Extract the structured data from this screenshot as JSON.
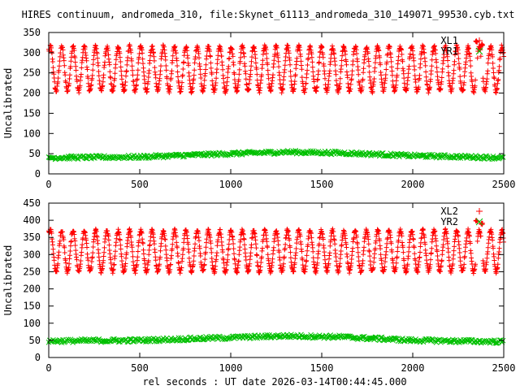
{
  "title": "HIRES continuum, andromeda_310, file:Skynet_61113_andromeda_310_149071_99530.cyb.txt",
  "xlabel": "rel seconds : UT date 2026-03-14T00:44:45.000",
  "colors": {
    "xl": "#ff0000",
    "yr": "#00c000",
    "frame": "#000000"
  },
  "chart_data": [
    {
      "type": "scatter",
      "ylabel": "Uncalibrated",
      "xlim": [
        0,
        2500
      ],
      "ylim": [
        0,
        350
      ],
      "xticks": [
        0,
        500,
        1000,
        1500,
        2000,
        2500
      ],
      "yticks": [
        0,
        50,
        100,
        150,
        200,
        250,
        300,
        350
      ],
      "legend_position": "top-right",
      "series": [
        {
          "name": "XL1",
          "marker": "+",
          "color": "#ff0000",
          "pattern": "periodic oscillation",
          "period": 62,
          "x_start": 0,
          "x_end": 2500,
          "x_step": 2,
          "low": 205,
          "high": 315,
          "peaks": [
            [
              0,
              310
            ],
            [
              2350,
              330
            ],
            [
              2380,
              322
            ]
          ]
        },
        {
          "name": "YR1",
          "marker": "x",
          "color": "#00c000",
          "pattern": "slow trend",
          "x_start": 0,
          "x_end": 2500,
          "x_step": 6,
          "trend": [
            [
              0,
              40
            ],
            [
              500,
              42
            ],
            [
              1000,
              50
            ],
            [
              1300,
              54
            ],
            [
              1600,
              52
            ],
            [
              2000,
              45
            ],
            [
              2500,
              40
            ]
          ],
          "spread": 4
        }
      ]
    },
    {
      "type": "scatter",
      "ylabel": "Uncalibrated",
      "xlim": [
        0,
        2500
      ],
      "ylim": [
        0,
        450
      ],
      "xticks": [
        0,
        500,
        1000,
        1500,
        2000,
        2500
      ],
      "yticks": [
        0,
        50,
        100,
        150,
        200,
        250,
        300,
        350,
        400,
        450
      ],
      "legend_position": "top-right",
      "series": [
        {
          "name": "XL2",
          "marker": "+",
          "color": "#ff0000",
          "pattern": "periodic oscillation",
          "period": 62,
          "x_start": 0,
          "x_end": 2500,
          "x_step": 2,
          "low": 250,
          "high": 370,
          "peaks": [
            [
              0,
              370
            ],
            [
              2350,
              400
            ],
            [
              2380,
              392
            ]
          ]
        },
        {
          "name": "YR2",
          "marker": "x",
          "color": "#00c000",
          "pattern": "slow trend",
          "x_start": 0,
          "x_end": 2500,
          "x_step": 6,
          "trend": [
            [
              0,
              48
            ],
            [
              500,
              50
            ],
            [
              1000,
              58
            ],
            [
              1300,
              63
            ],
            [
              1600,
              60
            ],
            [
              2000,
              50
            ],
            [
              2500,
              46
            ]
          ],
          "spread": 5
        }
      ]
    }
  ]
}
